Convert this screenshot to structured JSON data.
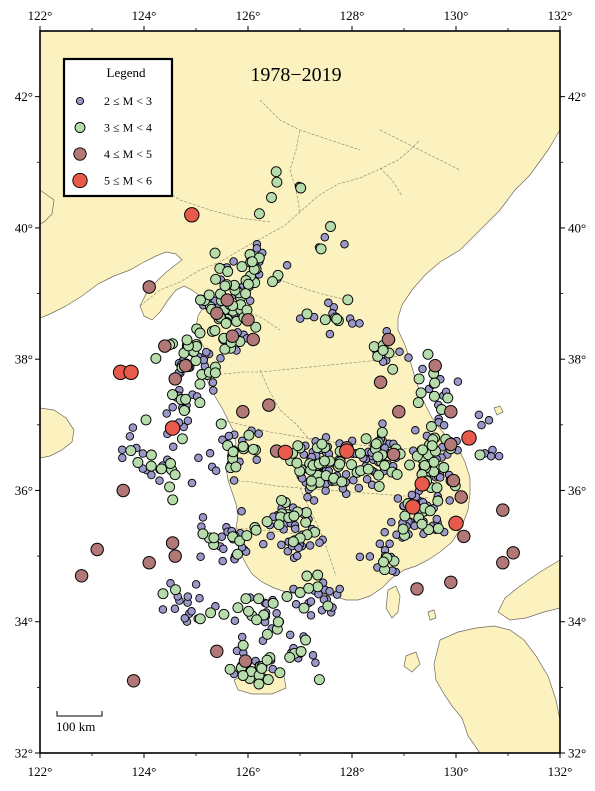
{
  "map": {
    "title": "1978−2019",
    "extent": {
      "lon": [
        122,
        132
      ],
      "lat": [
        32,
        43
      ]
    },
    "colors": {
      "sea": "#ffffff",
      "land": "#fbf2bf",
      "border": "#8a8070",
      "coast": "#6f6a5f"
    }
  },
  "axes": {
    "x_ticks": [
      {
        "value": 122,
        "label": "122°"
      },
      {
        "value": 124,
        "label": "124°"
      },
      {
        "value": 126,
        "label": "126°"
      },
      {
        "value": 128,
        "label": "128°"
      },
      {
        "value": 130,
        "label": "130°"
      },
      {
        "value": 132,
        "label": "132°"
      }
    ],
    "y_ticks": [
      {
        "value": 32,
        "label": "32°"
      },
      {
        "value": 34,
        "label": "34°"
      },
      {
        "value": 36,
        "label": "36°"
      },
      {
        "value": 38,
        "label": "38°"
      },
      {
        "value": 40,
        "label": "40°"
      },
      {
        "value": 42,
        "label": "42°"
      }
    ]
  },
  "legend": {
    "title": "Legend",
    "entries": [
      {
        "label": "2 ≤ M < 3",
        "color": "#9a98c8",
        "class": "m2"
      },
      {
        "label": "3 ≤ M < 4",
        "color": "#b5dcaa",
        "class": "m3"
      },
      {
        "label": "4 ≤ M < 5",
        "color": "#b27878",
        "class": "m4"
      },
      {
        "label": "5 ≤ M < 6",
        "color": "#e85b4c",
        "class": "m5"
      }
    ]
  },
  "scale_bar": {
    "label": "100 km"
  },
  "earthquakes_large": [
    {
      "lon": 124.92,
      "lat": 40.2,
      "m": 5.1
    },
    {
      "lon": 123.55,
      "lat": 37.8,
      "m": 5.0
    },
    {
      "lon": 123.75,
      "lat": 37.8,
      "m": 5.1
    },
    {
      "lon": 124.55,
      "lat": 36.95,
      "m": 5.0
    },
    {
      "lon": 126.72,
      "lat": 36.58,
      "m": 5.2
    },
    {
      "lon": 127.9,
      "lat": 36.6,
      "m": 5.2
    },
    {
      "lon": 129.35,
      "lat": 36.1,
      "m": 5.4
    },
    {
      "lon": 129.17,
      "lat": 35.75,
      "m": 5.8
    },
    {
      "lon": 130.0,
      "lat": 35.5,
      "m": 5.0
    },
    {
      "lon": 130.25,
      "lat": 36.8,
      "m": 5.1
    }
  ],
  "earthquakes_moderate": [
    {
      "lon": 124.1,
      "lat": 39.1,
      "m": 4.2
    },
    {
      "lon": 125.4,
      "lat": 38.7,
      "m": 4.3
    },
    {
      "lon": 125.7,
      "lat": 38.35,
      "m": 4.1
    },
    {
      "lon": 126.0,
      "lat": 38.6,
      "m": 4.2
    },
    {
      "lon": 124.4,
      "lat": 38.2,
      "m": 4.0
    },
    {
      "lon": 124.8,
      "lat": 37.9,
      "m": 4.1
    },
    {
      "lon": 124.6,
      "lat": 37.7,
      "m": 4.4
    },
    {
      "lon": 126.1,
      "lat": 38.3,
      "m": 4.0
    },
    {
      "lon": 126.4,
      "lat": 37.3,
      "m": 4.1
    },
    {
      "lon": 125.9,
      "lat": 37.2,
      "m": 4.0
    },
    {
      "lon": 128.7,
      "lat": 38.3,
      "m": 4.2
    },
    {
      "lon": 128.55,
      "lat": 37.65,
      "m": 4.0
    },
    {
      "lon": 129.6,
      "lat": 37.9,
      "m": 4.3
    },
    {
      "lon": 128.9,
      "lat": 37.2,
      "m": 4.1
    },
    {
      "lon": 129.9,
      "lat": 37.2,
      "m": 4.0
    },
    {
      "lon": 129.9,
      "lat": 36.7,
      "m": 4.2
    },
    {
      "lon": 128.8,
      "lat": 36.55,
      "m": 4.0
    },
    {
      "lon": 129.95,
      "lat": 36.15,
      "m": 4.1
    },
    {
      "lon": 130.1,
      "lat": 35.9,
      "m": 4.0
    },
    {
      "lon": 130.9,
      "lat": 35.7,
      "m": 4.3
    },
    {
      "lon": 130.15,
      "lat": 35.3,
      "m": 4.2
    },
    {
      "lon": 131.1,
      "lat": 35.05,
      "m": 4.4
    },
    {
      "lon": 130.9,
      "lat": 34.9,
      "m": 4.0
    },
    {
      "lon": 129.9,
      "lat": 34.6,
      "m": 4.1
    },
    {
      "lon": 129.25,
      "lat": 34.5,
      "m": 4.0
    },
    {
      "lon": 123.6,
      "lat": 36.0,
      "m": 4.2
    },
    {
      "lon": 123.1,
      "lat": 35.1,
      "m": 4.3
    },
    {
      "lon": 122.8,
      "lat": 34.7,
      "m": 4.1
    },
    {
      "lon": 124.1,
      "lat": 34.9,
      "m": 4.0
    },
    {
      "lon": 124.6,
      "lat": 35.0,
      "m": 4.2
    },
    {
      "lon": 124.55,
      "lat": 35.2,
      "m": 4.0
    },
    {
      "lon": 125.4,
      "lat": 33.55,
      "m": 4.1
    },
    {
      "lon": 125.95,
      "lat": 33.4,
      "m": 4.0
    },
    {
      "lon": 123.8,
      "lat": 33.1,
      "m": 4.3
    },
    {
      "lon": 126.55,
      "lat": 36.6,
      "m": 4.0
    },
    {
      "lon": 127.9,
      "lat": 36.65,
      "m": 4.1
    },
    {
      "lon": 125.6,
      "lat": 38.9,
      "m": 4.0
    }
  ]
}
